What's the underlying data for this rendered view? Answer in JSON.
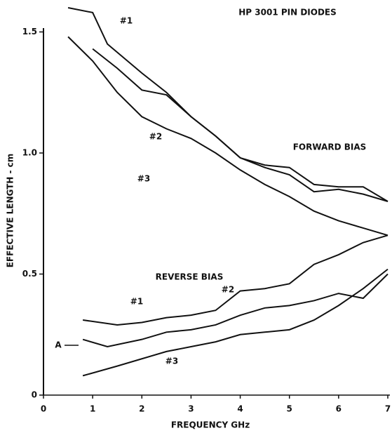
{
  "chart_data": {
    "type": "line",
    "title": "HP 3001 PIN DIODES",
    "xlabel": "FREQUENCY GHz",
    "ylabel": "EFFECTIVE LENGTH - cm",
    "annotations": [
      "FORWARD BIAS",
      "REVERSE BIAS",
      "A"
    ],
    "xlim": [
      0,
      7
    ],
    "xticks": [
      0,
      1,
      2,
      3,
      4,
      5,
      6,
      7
    ],
    "ylim": [
      0,
      1.6
    ],
    "yticks": [
      0,
      0.5,
      {
        "value": 1,
        "label": "1.0"
      },
      1.5
    ],
    "color": "#111111",
    "series": [
      {
        "name": "#1",
        "x": [
          0.5,
          1.0,
          1.3,
          2.0,
          2.5,
          3.0,
          3.5,
          4.0,
          4.5,
          5.0,
          5.5,
          6.0,
          6.5,
          7.0
        ],
        "values": [
          1.6,
          1.58,
          1.45,
          1.33,
          1.25,
          1.15,
          1.07,
          0.98,
          0.95,
          0.94,
          0.87,
          0.86,
          0.86,
          0.8
        ]
      },
      {
        "name": "#2",
        "x": [
          1.0,
          1.5,
          2.0,
          2.5,
          3.0,
          3.5,
          4.0,
          4.5,
          5.0,
          5.5,
          6.0,
          6.5,
          7.0
        ],
        "values": [
          1.43,
          1.35,
          1.26,
          1.24,
          1.15,
          1.07,
          0.98,
          0.94,
          0.91,
          0.84,
          0.85,
          0.83,
          0.8
        ]
      },
      {
        "name": "#3",
        "x": [
          0.5,
          1.0,
          1.5,
          2.0,
          2.5,
          3.0,
          3.5,
          4.0,
          4.5,
          5.0,
          5.5,
          6.0,
          6.5,
          7.0
        ],
        "values": [
          1.48,
          1.38,
          1.25,
          1.15,
          1.1,
          1.06,
          1.0,
          0.93,
          0.87,
          0.82,
          0.76,
          0.72,
          0.69,
          0.66
        ]
      },
      {
        "name": "#1",
        "x": [
          0.8,
          1.5,
          2.0,
          2.5,
          3.0,
          3.5,
          4.0,
          4.5,
          5.0,
          5.5,
          6.0,
          6.5,
          7.0
        ],
        "values": [
          0.31,
          0.29,
          0.3,
          0.32,
          0.33,
          0.35,
          0.43,
          0.44,
          0.46,
          0.54,
          0.58,
          0.63,
          0.66
        ]
      },
      {
        "name": "#2",
        "x": [
          0.8,
          1.3,
          2.0,
          2.5,
          3.0,
          3.5,
          4.0,
          4.5,
          5.0,
          5.5,
          6.0,
          6.5,
          7.0
        ],
        "values": [
          0.23,
          0.2,
          0.23,
          0.26,
          0.27,
          0.29,
          0.33,
          0.36,
          0.37,
          0.39,
          0.42,
          0.4,
          0.5
        ]
      },
      {
        "name": "#3",
        "x": [
          0.8,
          1.5,
          2.0,
          2.5,
          3.0,
          3.5,
          4.0,
          4.5,
          5.0,
          5.5,
          6.0,
          6.5,
          7.0
        ],
        "values": [
          0.08,
          0.12,
          0.15,
          0.18,
          0.2,
          0.22,
          0.25,
          0.26,
          0.27,
          0.31,
          0.37,
          0.44,
          0.52
        ]
      }
    ]
  }
}
